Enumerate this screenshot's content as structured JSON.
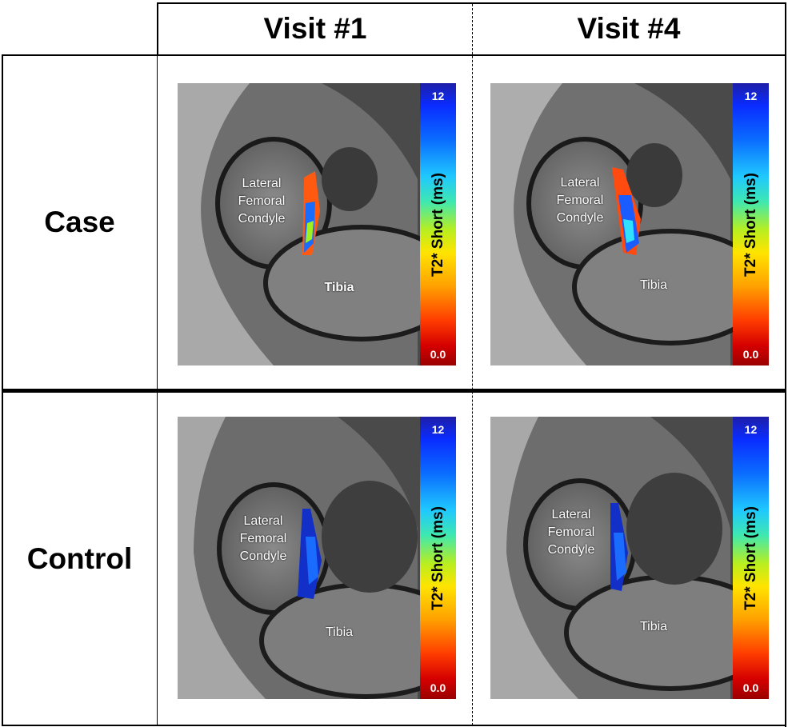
{
  "columns": [
    "Visit #1",
    "Visit #4"
  ],
  "rows": [
    "Case",
    "Control"
  ],
  "colorbar": {
    "max": "12",
    "min": "0.0",
    "label": "T2* Short (ms)"
  },
  "labels": {
    "lfc_line1": "Lateral",
    "lfc_line2": "Femoral",
    "lfc_line3": "Condyle",
    "tibia": "Tibia"
  },
  "colors": {
    "scale": [
      "#1e1ea8",
      "#0a6cff",
      "#1fc8ff",
      "#b8ee20",
      "#ffe400",
      "#ffa000",
      "#d40000",
      "#9a0000"
    ]
  }
}
